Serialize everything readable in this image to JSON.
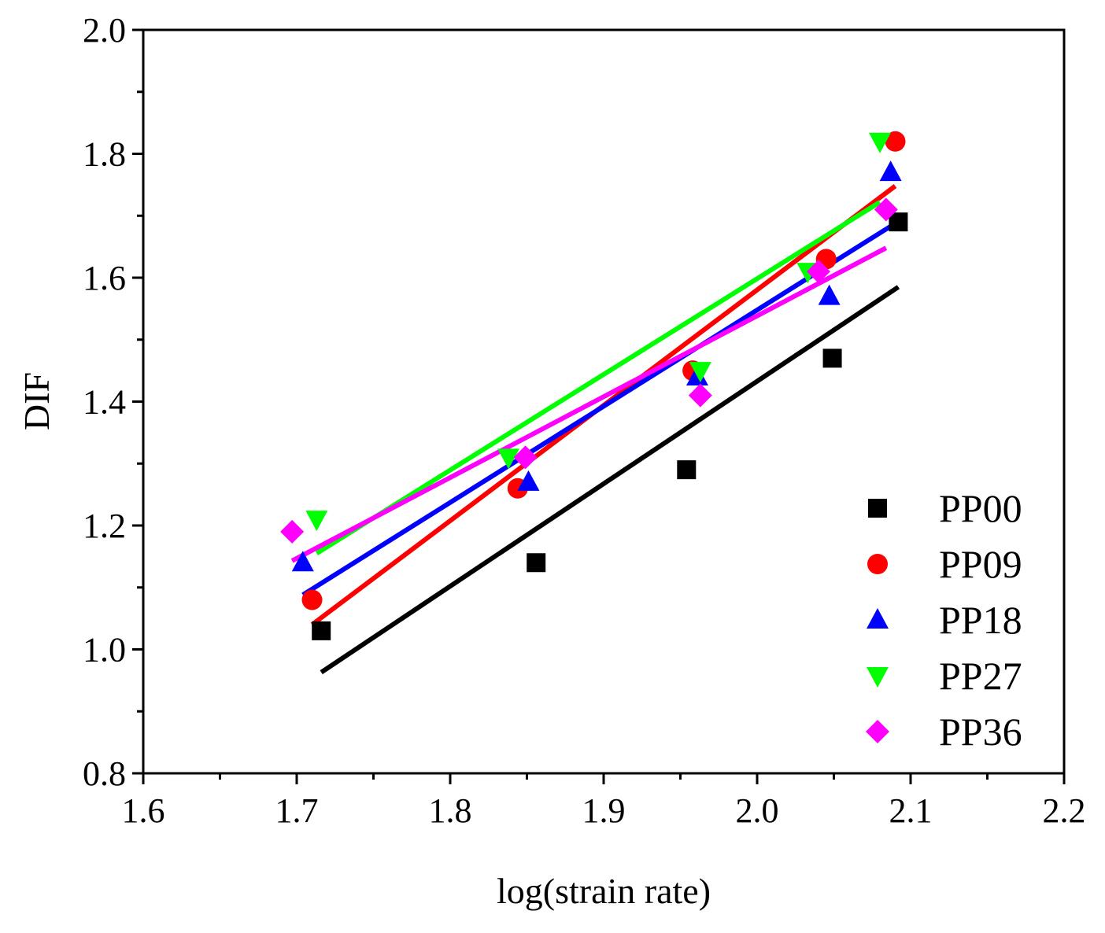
{
  "chart_data": {
    "type": "scatter",
    "xlabel": "log(strain rate)",
    "ylabel": "DIF",
    "xlim": [
      1.6,
      2.2
    ],
    "ylim": [
      0.8,
      2.0
    ],
    "xticks": [
      "1.6",
      "1.7",
      "1.8",
      "1.9",
      "2.0",
      "2.1",
      "2.2"
    ],
    "yticks": [
      "0.8",
      "1.0",
      "1.2",
      "1.4",
      "1.6",
      "1.8",
      "2.0"
    ],
    "grid": false,
    "legend_position": "bottom-right",
    "series": [
      {
        "name": "PP00",
        "marker": "square",
        "color": "#000000",
        "points": [
          [
            1.716,
            1.03
          ],
          [
            1.856,
            1.14
          ],
          [
            1.954,
            1.29
          ],
          [
            2.049,
            1.47
          ],
          [
            2.092,
            1.69
          ]
        ],
        "fit": [
          [
            1.716,
            0.963
          ],
          [
            2.092,
            1.585
          ]
        ]
      },
      {
        "name": "PP09",
        "marker": "circle",
        "color": "#ff0000",
        "points": [
          [
            1.71,
            1.08
          ],
          [
            1.844,
            1.26
          ],
          [
            1.958,
            1.45
          ],
          [
            2.045,
            1.63
          ],
          [
            2.09,
            1.82
          ]
        ],
        "fit": [
          [
            1.71,
            1.04
          ],
          [
            2.09,
            1.748
          ]
        ]
      },
      {
        "name": "PP18",
        "marker": "triangle-up",
        "color": "#0000ff",
        "points": [
          [
            1.704,
            1.14
          ],
          [
            1.851,
            1.27
          ],
          [
            1.961,
            1.44
          ],
          [
            2.047,
            1.57
          ],
          [
            2.087,
            1.77
          ]
        ],
        "fit": [
          [
            1.704,
            1.088
          ],
          [
            2.087,
            1.683
          ]
        ]
      },
      {
        "name": "PP27",
        "marker": "triangle-down",
        "color": "#00ff00",
        "points": [
          [
            1.713,
            1.21
          ],
          [
            1.838,
            1.31
          ],
          [
            1.963,
            1.45
          ],
          [
            2.033,
            1.61
          ],
          [
            2.08,
            1.82
          ]
        ],
        "fit": [
          [
            1.713,
            1.155
          ],
          [
            2.08,
            1.722
          ]
        ]
      },
      {
        "name": "PP36",
        "marker": "diamond",
        "color": "#ff00ff",
        "points": [
          [
            1.697,
            1.19
          ],
          [
            1.849,
            1.31
          ],
          [
            1.963,
            1.41
          ],
          [
            2.04,
            1.61
          ],
          [
            2.084,
            1.71
          ]
        ],
        "fit": [
          [
            1.697,
            1.143
          ],
          [
            2.084,
            1.648
          ]
        ]
      }
    ]
  }
}
